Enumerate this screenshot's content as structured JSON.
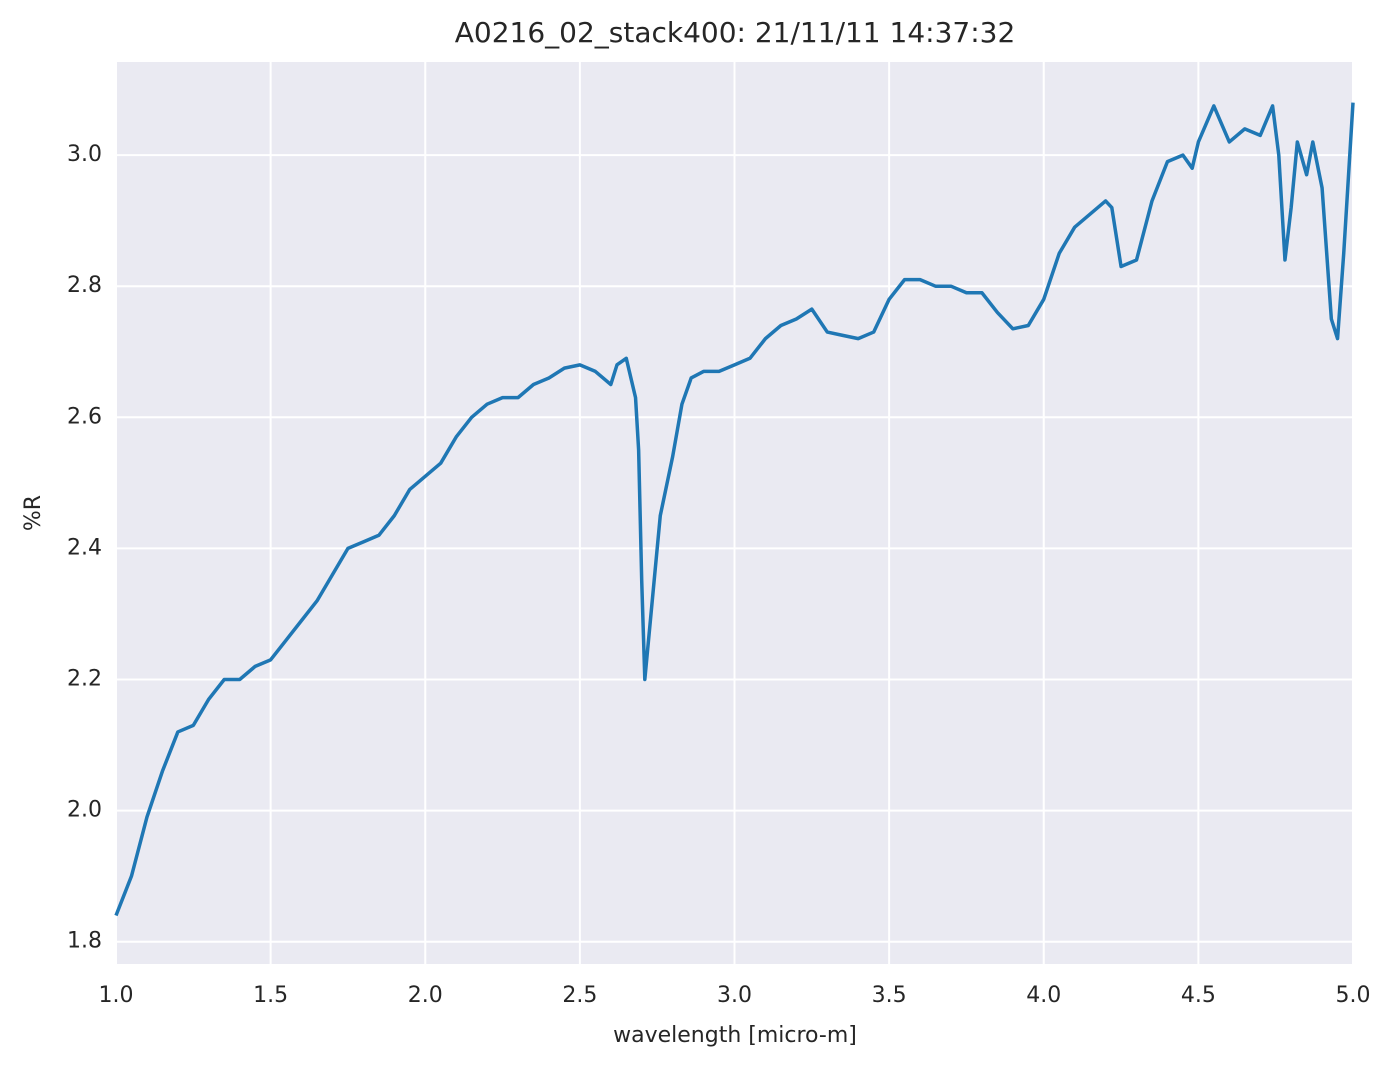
{
  "chart_data": {
    "type": "line",
    "title": "A0216_02_stack400:  21/11/11 14:37:32",
    "x_label": "wavelength [micro-m]",
    "y_label": "%R",
    "xlim": [
      1.0,
      5.0
    ],
    "ylim": [
      1.766,
      3.142
    ],
    "xticks": [
      {
        "value": 1,
        "label": "1.0"
      },
      1.5,
      {
        "value": 2,
        "label": "2.0"
      },
      2.5,
      {
        "value": 3,
        "label": "3.0"
      },
      3.5,
      {
        "value": 4,
        "label": "4.0"
      },
      4.5,
      {
        "value": 5,
        "label": "5.0"
      }
    ],
    "yticks": [
      1.8,
      {
        "value": 2,
        "label": "2.0"
      },
      2.2,
      2.4,
      2.6,
      2.8,
      {
        "value": 3,
        "label": "3.0"
      }
    ],
    "grid": true,
    "series": [
      {
        "name": "%R",
        "color": "#1f77b4",
        "x": [
          1.0,
          1.05,
          1.1,
          1.15,
          1.2,
          1.25,
          1.3,
          1.35,
          1.4,
          1.45,
          1.5,
          1.55,
          1.6,
          1.65,
          1.7,
          1.75,
          1.8,
          1.85,
          1.9,
          1.95,
          2.0,
          2.05,
          2.1,
          2.15,
          2.2,
          2.25,
          2.3,
          2.35,
          2.4,
          2.45,
          2.5,
          2.55,
          2.6,
          2.62,
          2.65,
          2.68,
          2.69,
          2.7,
          2.71,
          2.72,
          2.74,
          2.76,
          2.8,
          2.83,
          2.86,
          2.9,
          2.95,
          3.0,
          3.05,
          3.1,
          3.15,
          3.2,
          3.25,
          3.3,
          3.35,
          3.4,
          3.45,
          3.5,
          3.55,
          3.6,
          3.65,
          3.7,
          3.75,
          3.8,
          3.85,
          3.9,
          3.95,
          4.0,
          4.05,
          4.1,
          4.15,
          4.2,
          4.22,
          4.25,
          4.3,
          4.35,
          4.4,
          4.45,
          4.48,
          4.5,
          4.55,
          4.6,
          4.65,
          4.7,
          4.74,
          4.76,
          4.78,
          4.8,
          4.82,
          4.85,
          4.87,
          4.9,
          4.93,
          4.95,
          4.97,
          5.0
        ],
        "values": [
          1.84,
          1.9,
          1.99,
          2.06,
          2.12,
          2.13,
          2.17,
          2.2,
          2.2,
          2.22,
          2.23,
          2.26,
          2.29,
          2.32,
          2.36,
          2.4,
          2.41,
          2.42,
          2.45,
          2.49,
          2.51,
          2.53,
          2.57,
          2.6,
          2.62,
          2.63,
          2.63,
          2.65,
          2.66,
          2.675,
          2.68,
          2.67,
          2.65,
          2.68,
          2.69,
          2.63,
          2.55,
          2.35,
          2.2,
          2.25,
          2.35,
          2.45,
          2.54,
          2.62,
          2.66,
          2.67,
          2.67,
          2.68,
          2.69,
          2.72,
          2.74,
          2.75,
          2.765,
          2.73,
          2.725,
          2.72,
          2.73,
          2.78,
          2.81,
          2.81,
          2.8,
          2.8,
          2.79,
          2.79,
          2.76,
          2.735,
          2.74,
          2.78,
          2.85,
          2.89,
          2.91,
          2.93,
          2.92,
          2.83,
          2.84,
          2.93,
          2.99,
          3.0,
          2.98,
          3.02,
          3.075,
          3.02,
          3.04,
          3.03,
          3.075,
          3.0,
          2.84,
          2.92,
          3.02,
          2.97,
          3.02,
          2.95,
          2.75,
          2.72,
          2.85,
          3.08
        ]
      }
    ]
  }
}
